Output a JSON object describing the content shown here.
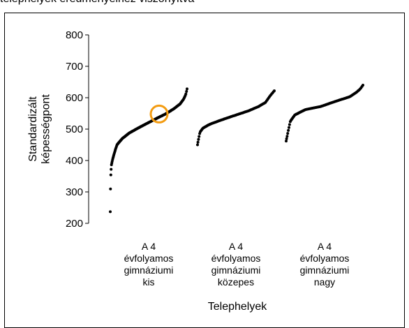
{
  "caption": "telephelyek eredményeihez viszonyítva",
  "chart_data": {
    "type": "scatter",
    "ylabel": [
      "Standardizált",
      "képességpont"
    ],
    "xlabel": "Telephelyek",
    "ylim": [
      200,
      800
    ],
    "yticks": [
      200,
      300,
      400,
      500,
      600,
      700,
      800
    ],
    "categories": [
      [
        "A 4",
        "évfolyamos",
        "gimnáziumi",
        "kis"
      ],
      [
        "A 4",
        "évfolyamos",
        "gimnáziumi",
        "közepes"
      ],
      [
        "A 4",
        "évfolyamos",
        "gimnáziumi",
        "nagy"
      ]
    ],
    "series": [
      {
        "category_index": 0,
        "profile": [
          [
            0,
            237
          ],
          [
            0.01,
            345
          ],
          [
            0.025,
            385
          ],
          [
            0.05,
            405
          ],
          [
            0.08,
            425
          ],
          [
            0.12,
            450
          ],
          [
            0.2,
            470
          ],
          [
            0.3,
            488
          ],
          [
            0.45,
            508
          ],
          [
            0.6,
            528
          ],
          [
            0.75,
            548
          ],
          [
            0.85,
            565
          ],
          [
            0.92,
            580
          ],
          [
            0.96,
            595
          ],
          [
            0.985,
            610
          ],
          [
            1,
            628
          ]
        ],
        "count": 150
      },
      {
        "category_index": 1,
        "profile": [
          [
            0,
            450
          ],
          [
            0.02,
            465
          ],
          [
            0.05,
            490
          ],
          [
            0.1,
            503
          ],
          [
            0.2,
            515
          ],
          [
            0.35,
            528
          ],
          [
            0.55,
            545
          ],
          [
            0.7,
            558
          ],
          [
            0.82,
            572
          ],
          [
            0.9,
            585
          ],
          [
            0.95,
            605
          ],
          [
            1,
            622
          ]
        ],
        "count": 90
      },
      {
        "category_index": 2,
        "profile": [
          [
            0,
            462
          ],
          [
            0.02,
            475
          ],
          [
            0.05,
            500
          ],
          [
            0.08,
            525
          ],
          [
            0.15,
            545
          ],
          [
            0.3,
            562
          ],
          [
            0.5,
            572
          ],
          [
            0.7,
            590
          ],
          [
            0.85,
            603
          ],
          [
            0.93,
            618
          ],
          [
            0.97,
            628
          ],
          [
            1,
            640
          ]
        ],
        "count": 90
      }
    ],
    "highlight": {
      "category_index": 0,
      "y": 548,
      "color": "#F39C12"
    },
    "marker_color": "#000000",
    "grid": false
  }
}
